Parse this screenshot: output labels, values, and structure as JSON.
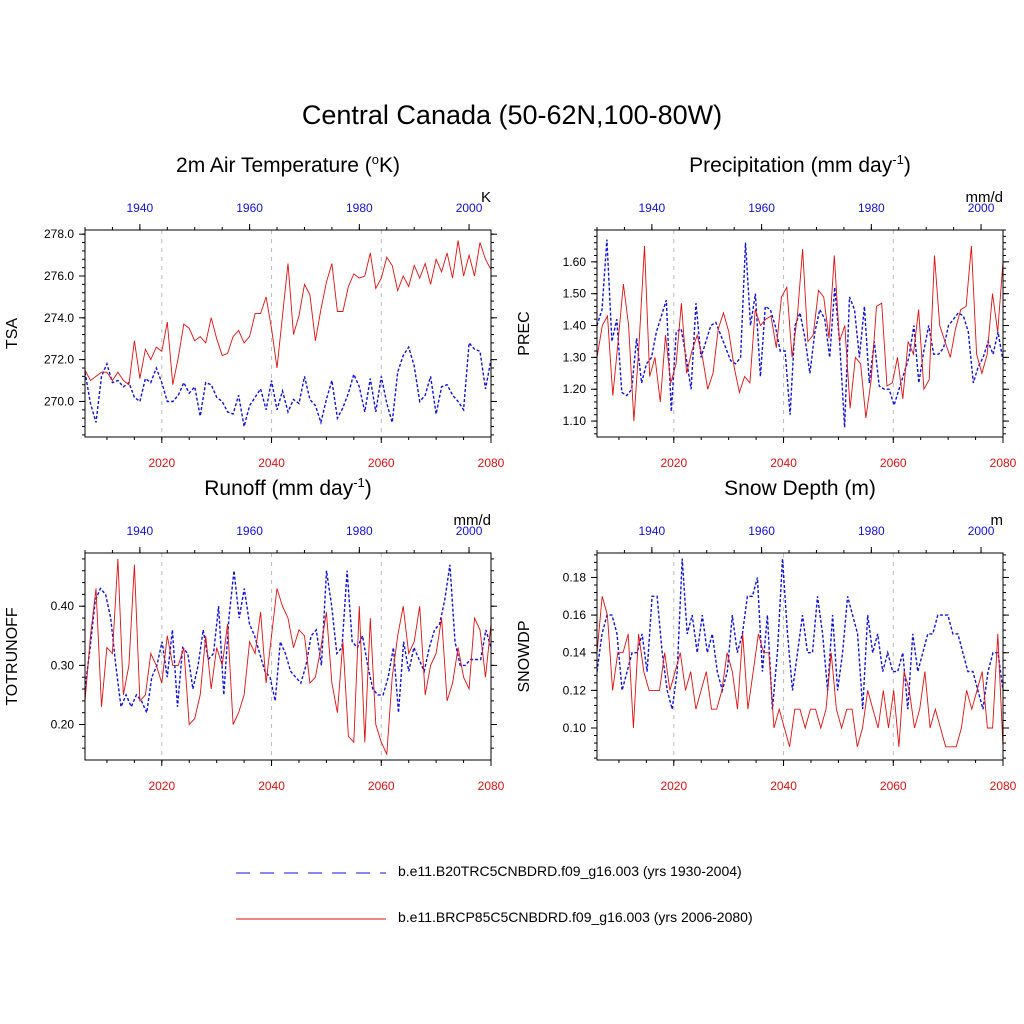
{
  "figure": {
    "title": "Central Canada (50-62N,100-80W)"
  },
  "colors": {
    "historical": "#1010e0",
    "future": "#e01010",
    "grid": "#bbbbbb",
    "axis": "#000000"
  },
  "legend": [
    {
      "label": "b.e11.B20TRC5CNBDRD.f09_g16.003 (yrs 1930-2004)",
      "color": "#1010e0",
      "style": "dashed"
    },
    {
      "label": "b.e11.BRCP85C5CNBDRD.f09_g16.003 (yrs 2006-2080)",
      "color": "#e01010",
      "style": "solid"
    }
  ],
  "chart_data": [
    {
      "type": "line",
      "title": "2m Air Temperature (oK)",
      "title_main": "2m Air Temperature (",
      "title_sup": "o",
      "title_end": "K)",
      "ylabel": "TSA",
      "units": "K",
      "ylim": [
        268.3,
        278.2
      ],
      "yticks": [
        270.0,
        272.0,
        274.0,
        276.0,
        278.0
      ],
      "ytick_labels": [
        "270.0",
        "272.0",
        "274.0",
        "276.0",
        "278.0"
      ],
      "x_bottom": {
        "range": [
          2006,
          2080
        ],
        "ticks": [
          2020,
          2040,
          2060,
          2080
        ],
        "labels": [
          "2020",
          "2040",
          "2060",
          "2080"
        ]
      },
      "x_top": {
        "range": [
          1930,
          2004
        ],
        "ticks": [
          1940,
          1960,
          1980,
          2000
        ],
        "labels": [
          "1940",
          "1960",
          "1980",
          "2000"
        ]
      },
      "series": [
        {
          "name": "b.e11.B20TRC5CNBDRD.f09_g16.003 (yrs 1930-2004)",
          "axis": "top",
          "style": "dashed",
          "values": [
            271.4,
            269.9,
            269.0,
            271.2,
            271.8,
            270.9,
            271.0,
            270.7,
            270.9,
            270.2,
            270.0,
            271.1,
            270.9,
            271.6,
            270.9,
            270.0,
            270.0,
            270.3,
            270.9,
            270.4,
            270.7,
            269.3,
            270.9,
            270.8,
            270.2,
            270.0,
            269.5,
            269.4,
            270.3,
            268.8,
            269.8,
            270.2,
            270.6,
            269.6,
            271.0,
            269.6,
            270.5,
            269.5,
            270.1,
            269.9,
            271.2,
            270.1,
            269.8,
            269.0,
            270.1,
            271.0,
            269.2,
            269.7,
            270.4,
            271.3,
            270.7,
            269.5,
            271.1,
            269.5,
            271.2,
            269.9,
            269.0,
            271.4,
            272.2,
            272.6,
            271.7,
            270.0,
            270.3,
            271.2,
            269.4,
            270.7,
            270.8,
            270.3,
            270.0,
            269.6,
            272.8,
            272.5,
            272.4,
            270.6,
            272.0
          ]
        },
        {
          "name": "b.e11.BRCP85C5CNBDRD.f09_g16.003 (yrs 2006-2080)",
          "axis": "bottom",
          "style": "solid",
          "values": [
            271.5,
            271.0,
            271.2,
            271.4,
            271.4,
            271.0,
            271.4,
            271.0,
            270.8,
            272.9,
            271.1,
            272.5,
            272.0,
            272.6,
            272.4,
            273.8,
            270.8,
            272.1,
            273.7,
            273.5,
            272.9,
            273.1,
            272.8,
            274.0,
            273.0,
            272.2,
            272.3,
            273.1,
            273.4,
            272.8,
            273.1,
            274.2,
            274.2,
            275.0,
            273.5,
            271.6,
            274.1,
            276.6,
            273.2,
            274.1,
            275.6,
            275.1,
            272.9,
            274.4,
            275.7,
            276.6,
            274.3,
            274.3,
            275.5,
            276.1,
            275.9,
            276.0,
            277.1,
            275.4,
            275.9,
            276.9,
            276.5,
            275.3,
            276.0,
            275.5,
            276.5,
            275.9,
            276.6,
            275.6,
            276.8,
            276.2,
            277.1,
            275.9,
            277.7,
            276.0,
            277.0,
            276.0,
            277.6,
            276.8,
            276.3
          ]
        }
      ]
    },
    {
      "type": "line",
      "title": "Precipitation (mm day-1)",
      "title_main": "Precipitation (mm day",
      "title_sup": "-1",
      "title_end": ")",
      "ylabel": "PREC",
      "units": "mm/d",
      "ylim": [
        1.05,
        1.7
      ],
      "yticks": [
        1.1,
        1.2,
        1.3,
        1.4,
        1.5,
        1.6
      ],
      "ytick_labels": [
        "1.10",
        "1.20",
        "1.30",
        "1.40",
        "1.50",
        "1.60"
      ],
      "x_bottom": {
        "range": [
          2006,
          2080
        ],
        "ticks": [
          2020,
          2040,
          2060,
          2080
        ],
        "labels": [
          "2020",
          "2040",
          "2060",
          "2080"
        ]
      },
      "x_top": {
        "range": [
          1930,
          2004
        ],
        "ticks": [
          1940,
          1960,
          1980,
          2000
        ],
        "labels": [
          "1940",
          "1960",
          "1980",
          "2000"
        ]
      },
      "series": [
        {
          "name": "b.e11.B20TRC5CNBDRD.f09_g16.003 (yrs 1930-2004)",
          "axis": "top",
          "style": "dashed",
          "values": [
            1.4,
            1.45,
            1.67,
            1.35,
            1.42,
            1.19,
            1.18,
            1.2,
            1.36,
            1.22,
            1.28,
            1.3,
            1.38,
            1.43,
            1.48,
            1.13,
            1.38,
            1.39,
            1.3,
            1.2,
            1.47,
            1.3,
            1.35,
            1.4,
            1.41,
            1.37,
            1.33,
            1.29,
            1.28,
            1.3,
            1.66,
            1.4,
            1.5,
            1.24,
            1.46,
            1.45,
            1.4,
            1.32,
            1.32,
            1.12,
            1.4,
            1.44,
            1.36,
            1.25,
            1.38,
            1.45,
            1.42,
            1.3,
            1.52,
            1.35,
            1.08,
            1.49,
            1.45,
            1.3,
            1.46,
            1.22,
            1.35,
            1.21,
            1.2,
            1.2,
            1.15,
            1.2,
            1.25,
            1.3,
            1.4,
            1.22,
            1.32,
            1.4,
            1.31,
            1.31,
            1.33,
            1.4,
            1.42,
            1.44,
            1.43,
            1.38,
            1.22,
            1.27,
            1.3,
            1.35,
            1.31,
            1.38,
            1.29
          ]
        },
        {
          "name": "b.e11.BRCP85C5CNBDRD.f09_g16.003 (yrs 2006-2080)",
          "axis": "bottom",
          "style": "solid",
          "values": [
            1.3,
            1.4,
            1.43,
            1.18,
            1.35,
            1.53,
            1.4,
            1.1,
            1.35,
            1.65,
            1.24,
            1.3,
            1.16,
            1.37,
            1.22,
            1.28,
            1.47,
            1.25,
            1.32,
            1.37,
            1.3,
            1.2,
            1.25,
            1.39,
            1.44,
            1.38,
            1.27,
            1.19,
            1.24,
            1.22,
            1.45,
            1.4,
            1.42,
            1.43,
            1.33,
            1.49,
            1.52,
            1.3,
            1.43,
            1.64,
            1.35,
            1.37,
            1.51,
            1.49,
            1.36,
            1.62,
            1.35,
            1.4,
            1.14,
            1.3,
            1.28,
            1.11,
            1.23,
            1.46,
            1.47,
            1.21,
            1.22,
            1.3,
            1.17,
            1.35,
            1.31,
            1.45,
            1.2,
            1.23,
            1.62,
            1.4,
            1.35,
            1.3,
            1.39,
            1.45,
            1.46,
            1.65,
            1.31,
            1.25,
            1.31,
            1.5,
            1.38,
            1.6
          ]
        }
      ]
    },
    {
      "type": "line",
      "title": "Runoff (mm day-1)",
      "title_main": "Runoff (mm day",
      "title_sup": "-1",
      "title_end": ")",
      "ylabel": "TOTRUNOFF",
      "units": "mm/d",
      "ylim": [
        0.14,
        0.49
      ],
      "yticks": [
        0.2,
        0.3,
        0.4
      ],
      "ytick_labels": [
        "0.20",
        "0.30",
        "0.40"
      ],
      "x_bottom": {
        "range": [
          2006,
          2080
        ],
        "ticks": [
          2020,
          2040,
          2060,
          2080
        ],
        "labels": [
          "2020",
          "2040",
          "2060",
          "2080"
        ]
      },
      "x_top": {
        "range": [
          1930,
          2004
        ],
        "ticks": [
          1940,
          1960,
          1980,
          2000
        ],
        "labels": [
          "1940",
          "1960",
          "1980",
          "2000"
        ]
      },
      "series": [
        {
          "name": "b.e11.B20TRC5CNBDRD.f09_g16.003 (yrs 1930-2004)",
          "axis": "top",
          "style": "dashed",
          "values": [
            0.26,
            0.33,
            0.41,
            0.43,
            0.42,
            0.38,
            0.3,
            0.23,
            0.25,
            0.23,
            0.25,
            0.24,
            0.22,
            0.28,
            0.3,
            0.34,
            0.28,
            0.36,
            0.23,
            0.33,
            0.32,
            0.26,
            0.3,
            0.36,
            0.31,
            0.32,
            0.4,
            0.25,
            0.38,
            0.46,
            0.38,
            0.43,
            0.37,
            0.35,
            0.32,
            0.29,
            0.28,
            0.24,
            0.34,
            0.32,
            0.29,
            0.28,
            0.27,
            0.3,
            0.35,
            0.36,
            0.3,
            0.46,
            0.4,
            0.32,
            0.33,
            0.46,
            0.34,
            0.33,
            0.35,
            0.3,
            0.26,
            0.25,
            0.25,
            0.28,
            0.33,
            0.22,
            0.34,
            0.29,
            0.33,
            0.31,
            0.29,
            0.33,
            0.36,
            0.37,
            0.41,
            0.47,
            0.34,
            0.3,
            0.3,
            0.31,
            0.31,
            0.31,
            0.36,
            0.33
          ]
        },
        {
          "name": "b.e11.BRCP85C5CNBDRD.f09_g16.003 (yrs 2006-2080)",
          "axis": "bottom",
          "style": "solid",
          "values": [
            0.24,
            0.35,
            0.43,
            0.23,
            0.33,
            0.32,
            0.48,
            0.25,
            0.3,
            0.47,
            0.24,
            0.25,
            0.32,
            0.3,
            0.27,
            0.35,
            0.3,
            0.3,
            0.33,
            0.2,
            0.21,
            0.25,
            0.35,
            0.26,
            0.33,
            0.3,
            0.37,
            0.2,
            0.22,
            0.25,
            0.34,
            0.32,
            0.39,
            0.27,
            0.35,
            0.43,
            0.4,
            0.38,
            0.33,
            0.36,
            0.35,
            0.27,
            0.28,
            0.33,
            0.39,
            0.27,
            0.22,
            0.34,
            0.18,
            0.17,
            0.4,
            0.17,
            0.38,
            0.2,
            0.17,
            0.15,
            0.28,
            0.35,
            0.4,
            0.32,
            0.34,
            0.4,
            0.25,
            0.3,
            0.32,
            0.38,
            0.24,
            0.27,
            0.33,
            0.28,
            0.26,
            0.38,
            0.36,
            0.28,
            0.37
          ]
        }
      ]
    },
    {
      "type": "line",
      "title": "Snow Depth (m)",
      "title_main": "Snow Depth (m)",
      "title_sup": "",
      "title_end": "",
      "ylabel": "SNOWDP",
      "units": "m",
      "ylim": [
        0.083,
        0.193
      ],
      "yticks": [
        0.1,
        0.12,
        0.14,
        0.16,
        0.18
      ],
      "ytick_labels": [
        "0.10",
        "0.12",
        "0.14",
        "0.16",
        "0.18"
      ],
      "x_bottom": {
        "range": [
          2006,
          2080
        ],
        "ticks": [
          2020,
          2040,
          2060,
          2080
        ],
        "labels": [
          "2020",
          "2040",
          "2060",
          "2080"
        ]
      },
      "x_top": {
        "range": [
          1930,
          2004
        ],
        "ticks": [
          1940,
          1960,
          1980,
          2000
        ],
        "labels": [
          "1940",
          "1960",
          "1980",
          "2000"
        ]
      },
      "series": [
        {
          "name": "b.e11.B20TRC5CNBDRD.f09_g16.003 (yrs 1930-2004)",
          "axis": "top",
          "style": "dashed",
          "values": [
            0.13,
            0.15,
            0.16,
            0.16,
            0.15,
            0.12,
            0.13,
            0.14,
            0.14,
            0.15,
            0.13,
            0.17,
            0.17,
            0.14,
            0.12,
            0.11,
            0.13,
            0.19,
            0.15,
            0.16,
            0.14,
            0.16,
            0.14,
            0.15,
            0.13,
            0.12,
            0.13,
            0.16,
            0.14,
            0.15,
            0.17,
            0.17,
            0.18,
            0.13,
            0.16,
            0.11,
            0.14,
            0.19,
            0.15,
            0.12,
            0.14,
            0.16,
            0.14,
            0.14,
            0.17,
            0.15,
            0.12,
            0.16,
            0.12,
            0.14,
            0.17,
            0.16,
            0.15,
            0.11,
            0.16,
            0.14,
            0.15,
            0.13,
            0.14,
            0.13,
            0.13,
            0.14,
            0.11,
            0.15,
            0.13,
            0.14,
            0.15,
            0.15,
            0.16,
            0.16,
            0.16,
            0.15,
            0.15,
            0.14,
            0.13,
            0.13,
            0.12,
            0.11,
            0.13,
            0.14,
            0.14,
            0.12
          ]
        },
        {
          "name": "b.e11.BRCP85C5CNBDRD.f09_g16.003 (yrs 2006-2080)",
          "axis": "bottom",
          "style": "solid",
          "values": [
            0.14,
            0.17,
            0.16,
            0.12,
            0.14,
            0.14,
            0.15,
            0.1,
            0.15,
            0.13,
            0.12,
            0.12,
            0.12,
            0.14,
            0.12,
            0.13,
            0.14,
            0.12,
            0.13,
            0.11,
            0.12,
            0.13,
            0.11,
            0.11,
            0.12,
            0.14,
            0.13,
            0.11,
            0.15,
            0.11,
            0.13,
            0.15,
            0.14,
            0.14,
            0.1,
            0.11,
            0.1,
            0.09,
            0.11,
            0.11,
            0.1,
            0.11,
            0.11,
            0.1,
            0.11,
            0.14,
            0.11,
            0.1,
            0.11,
            0.11,
            0.09,
            0.1,
            0.12,
            0.11,
            0.1,
            0.12,
            0.1,
            0.12,
            0.09,
            0.13,
            0.12,
            0.1,
            0.11,
            0.13,
            0.1,
            0.11,
            0.1,
            0.09,
            0.09,
            0.09,
            0.1,
            0.12,
            0.11,
            0.12,
            0.13,
            0.1,
            0.1,
            0.15,
            0.09
          ]
        }
      ]
    }
  ]
}
